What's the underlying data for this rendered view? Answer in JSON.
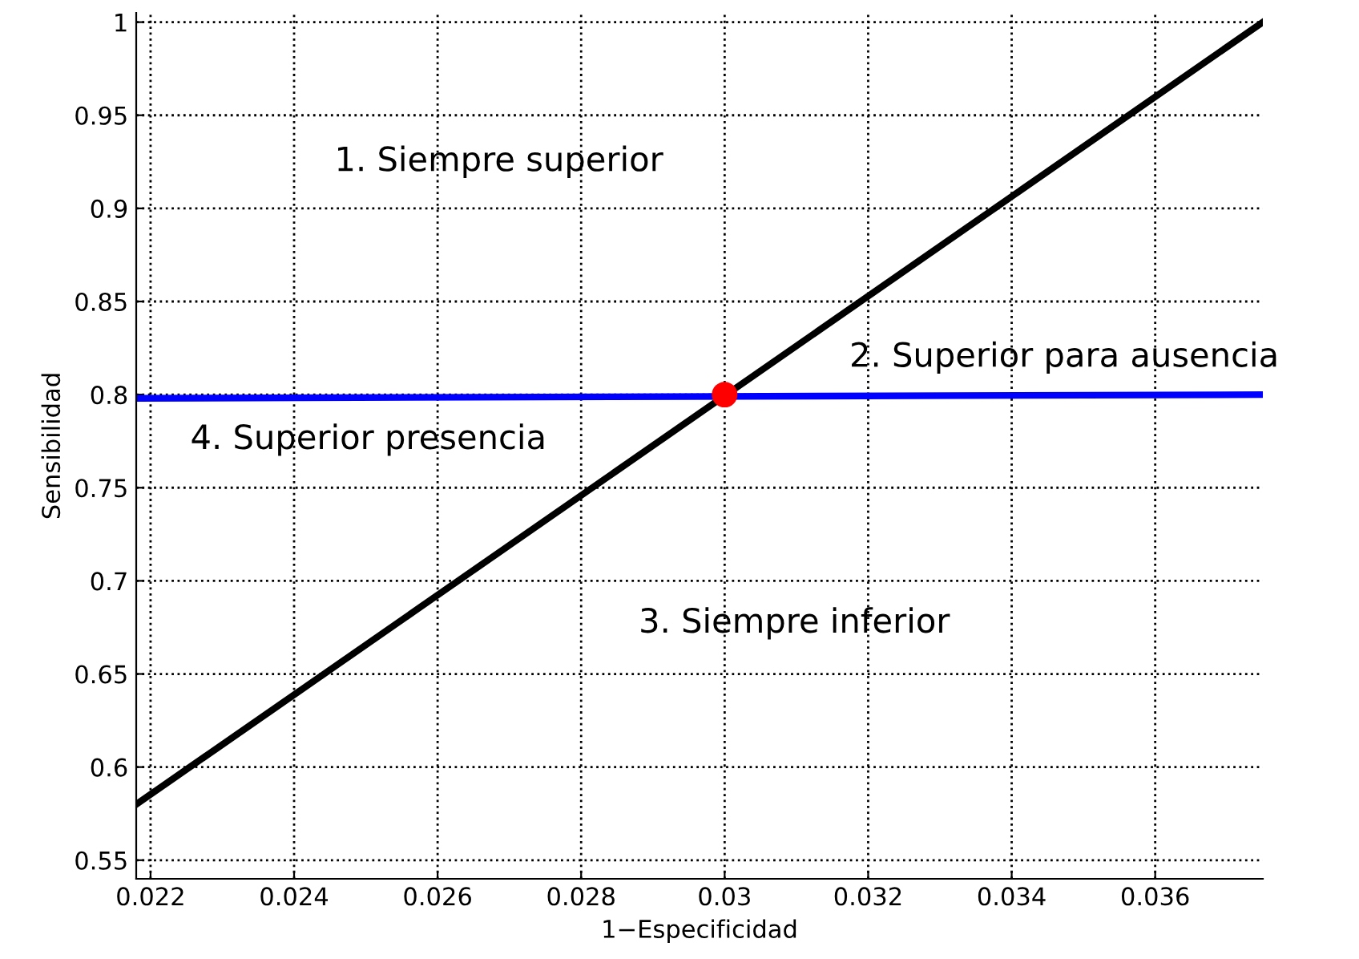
{
  "chart_data": {
    "type": "line",
    "xlabel": "1−Especificidad",
    "ylabel": "Sensibilidad",
    "xlim": [
      0.0218,
      0.0375
    ],
    "ylim": [
      0.54,
      1.005
    ],
    "xticks": [
      0.022,
      0.024,
      0.026,
      0.028,
      0.03,
      0.032,
      0.034,
      0.036
    ],
    "yticks": [
      0.55,
      0.6,
      0.65,
      0.7,
      0.75,
      0.8,
      0.85,
      0.9,
      0.95,
      1
    ],
    "grid": true,
    "line_style": "solid",
    "marker": "none",
    "series": [
      {
        "color": "#0000ff",
        "x": [
          0.0218,
          0.0375
        ],
        "values": [
          0.798,
          0.8
        ]
      },
      {
        "color": "#000000",
        "x": [
          0.0218,
          0.0375
        ],
        "values": [
          0.58,
          1.0
        ]
      },
      {
        "type": "scatter",
        "color": "#ff0000",
        "marker": "circle",
        "x": [
          0.03
        ],
        "values": [
          0.8
        ]
      }
    ],
    "annotations": [
      "1. Siempre superior",
      "2. Superior para ausencia",
      "3. Siempre inferior",
      "4. Superior presencia"
    ]
  }
}
